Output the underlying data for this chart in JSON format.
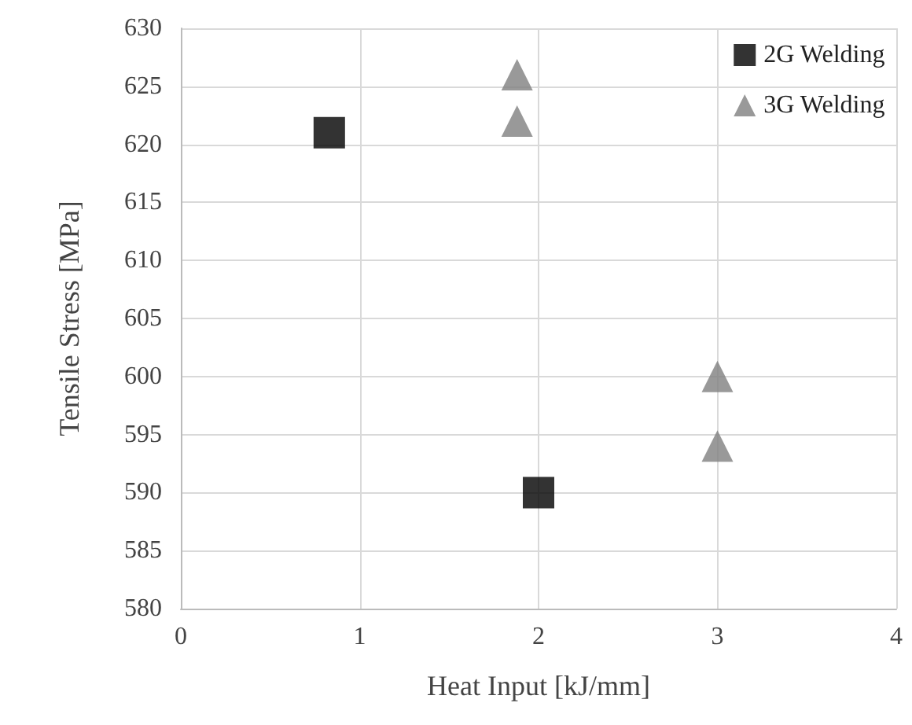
{
  "chart_data": {
    "type": "scatter",
    "xlabel": "Heat Input [kJ/mm]",
    "ylabel": "Tensile Stress [MPa]",
    "xlim": [
      0,
      4
    ],
    "xticks": [
      0,
      1,
      2,
      3,
      4
    ],
    "ylim": [
      580,
      630
    ],
    "yticks": [
      580,
      585,
      590,
      595,
      600,
      605,
      610,
      615,
      620,
      625,
      630
    ],
    "grid": true,
    "legend": "top right",
    "series": [
      {
        "name": "2G Welding",
        "color": "#000000",
        "marker": "square",
        "x": [
          0.83,
          2.0
        ],
        "values": [
          621,
          590
        ]
      },
      {
        "name": "3G Welding",
        "color": "#808080",
        "marker": "triangle",
        "x": [
          1.88,
          1.88,
          3.0,
          3.0
        ],
        "values": [
          626,
          622,
          600,
          594
        ]
      }
    ]
  }
}
